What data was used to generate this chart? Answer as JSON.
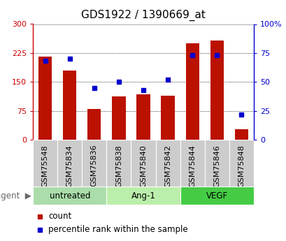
{
  "title": "GDS1922 / 1390669_at",
  "samples": [
    "GSM75548",
    "GSM75834",
    "GSM75836",
    "GSM75838",
    "GSM75840",
    "GSM75842",
    "GSM75844",
    "GSM75846",
    "GSM75848"
  ],
  "red_values": [
    215,
    180,
    80,
    112,
    118,
    115,
    250,
    258,
    28
  ],
  "blue_values": [
    68,
    70,
    45,
    50,
    43,
    52,
    73,
    73,
    22
  ],
  "groups": [
    {
      "label": "untreated",
      "indices": [
        0,
        1,
        2
      ],
      "bg_color": "#aaddaa"
    },
    {
      "label": "Ang-1",
      "indices": [
        3,
        4,
        5
      ],
      "bg_color": "#bbeeaa"
    },
    {
      "label": "VEGF",
      "indices": [
        6,
        7,
        8
      ],
      "bg_color": "#44cc44"
    }
  ],
  "ylim_left": [
    0,
    300
  ],
  "ylim_right": [
    0,
    100
  ],
  "yticks_left": [
    0,
    75,
    150,
    225,
    300
  ],
  "yticks_right": [
    0,
    25,
    50,
    75,
    100
  ],
  "bar_color": "#bb1100",
  "marker_color": "#0000cc",
  "ylabel_left_color": "#cc0000",
  "ylabel_right_color": "#0000cc",
  "tick_label_bg": "#cccccc",
  "legend_count": "count",
  "legend_percentile": "percentile rank within the sample",
  "title_fontsize": 11,
  "tick_fontsize": 8,
  "bar_width": 0.55,
  "agent_label": "agent"
}
